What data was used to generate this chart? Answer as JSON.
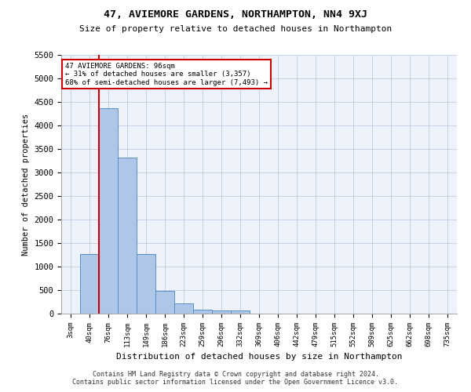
{
  "title1": "47, AVIEMORE GARDENS, NORTHAMPTON, NN4 9XJ",
  "title2": "Size of property relative to detached houses in Northampton",
  "xlabel": "Distribution of detached houses by size in Northampton",
  "ylabel": "Number of detached properties",
  "bin_labels": [
    "3sqm",
    "40sqm",
    "76sqm",
    "113sqm",
    "149sqm",
    "186sqm",
    "223sqm",
    "259sqm",
    "296sqm",
    "332sqm",
    "369sqm",
    "406sqm",
    "442sqm",
    "479sqm",
    "515sqm",
    "552sqm",
    "589sqm",
    "625sqm",
    "662sqm",
    "698sqm",
    "735sqm"
  ],
  "bar_values": [
    0,
    1260,
    4360,
    3310,
    1270,
    490,
    220,
    90,
    60,
    60,
    0,
    0,
    0,
    0,
    0,
    0,
    0,
    0,
    0,
    0,
    0
  ],
  "bar_color": "#aec6e8",
  "bar_edge_color": "#5a8fc2",
  "vline_color": "#cc0000",
  "annotation_text": "47 AVIEMORE GARDENS: 96sqm\n← 31% of detached houses are smaller (3,357)\n68% of semi-detached houses are larger (7,493) →",
  "annotation_box_color": "#ffffff",
  "annotation_box_edge": "#cc0000",
  "ylim": [
    0,
    5500
  ],
  "yticks": [
    0,
    500,
    1000,
    1500,
    2000,
    2500,
    3000,
    3500,
    4000,
    4500,
    5000,
    5500
  ],
  "footer1": "Contains HM Land Registry data © Crown copyright and database right 2024.",
  "footer2": "Contains public sector information licensed under the Open Government Licence v3.0.",
  "bg_color": "#eef2fb",
  "grid_color": "#c8d0e8"
}
